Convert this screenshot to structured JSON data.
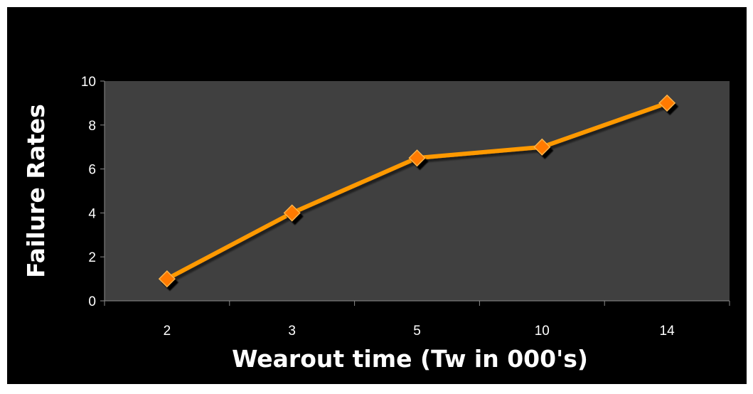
{
  "chart_data": {
    "type": "line",
    "categories": [
      "2",
      "3",
      "5",
      "10",
      "14"
    ],
    "series": [
      {
        "values": [
          1,
          4,
          6.5,
          7,
          9
        ]
      }
    ],
    "xlabel": "Wearout time (Tw in 000's)",
    "ylabel": "Failure Rates",
    "ylim": [
      0,
      10
    ],
    "yticks": [
      0,
      2,
      4,
      6,
      8,
      10
    ],
    "grid": false,
    "legend": "none",
    "colors": {
      "background": "#000000",
      "plot_area": "#404040",
      "line": "#ff9900",
      "marker": "#ff7a00",
      "text": "#ffffff"
    }
  }
}
